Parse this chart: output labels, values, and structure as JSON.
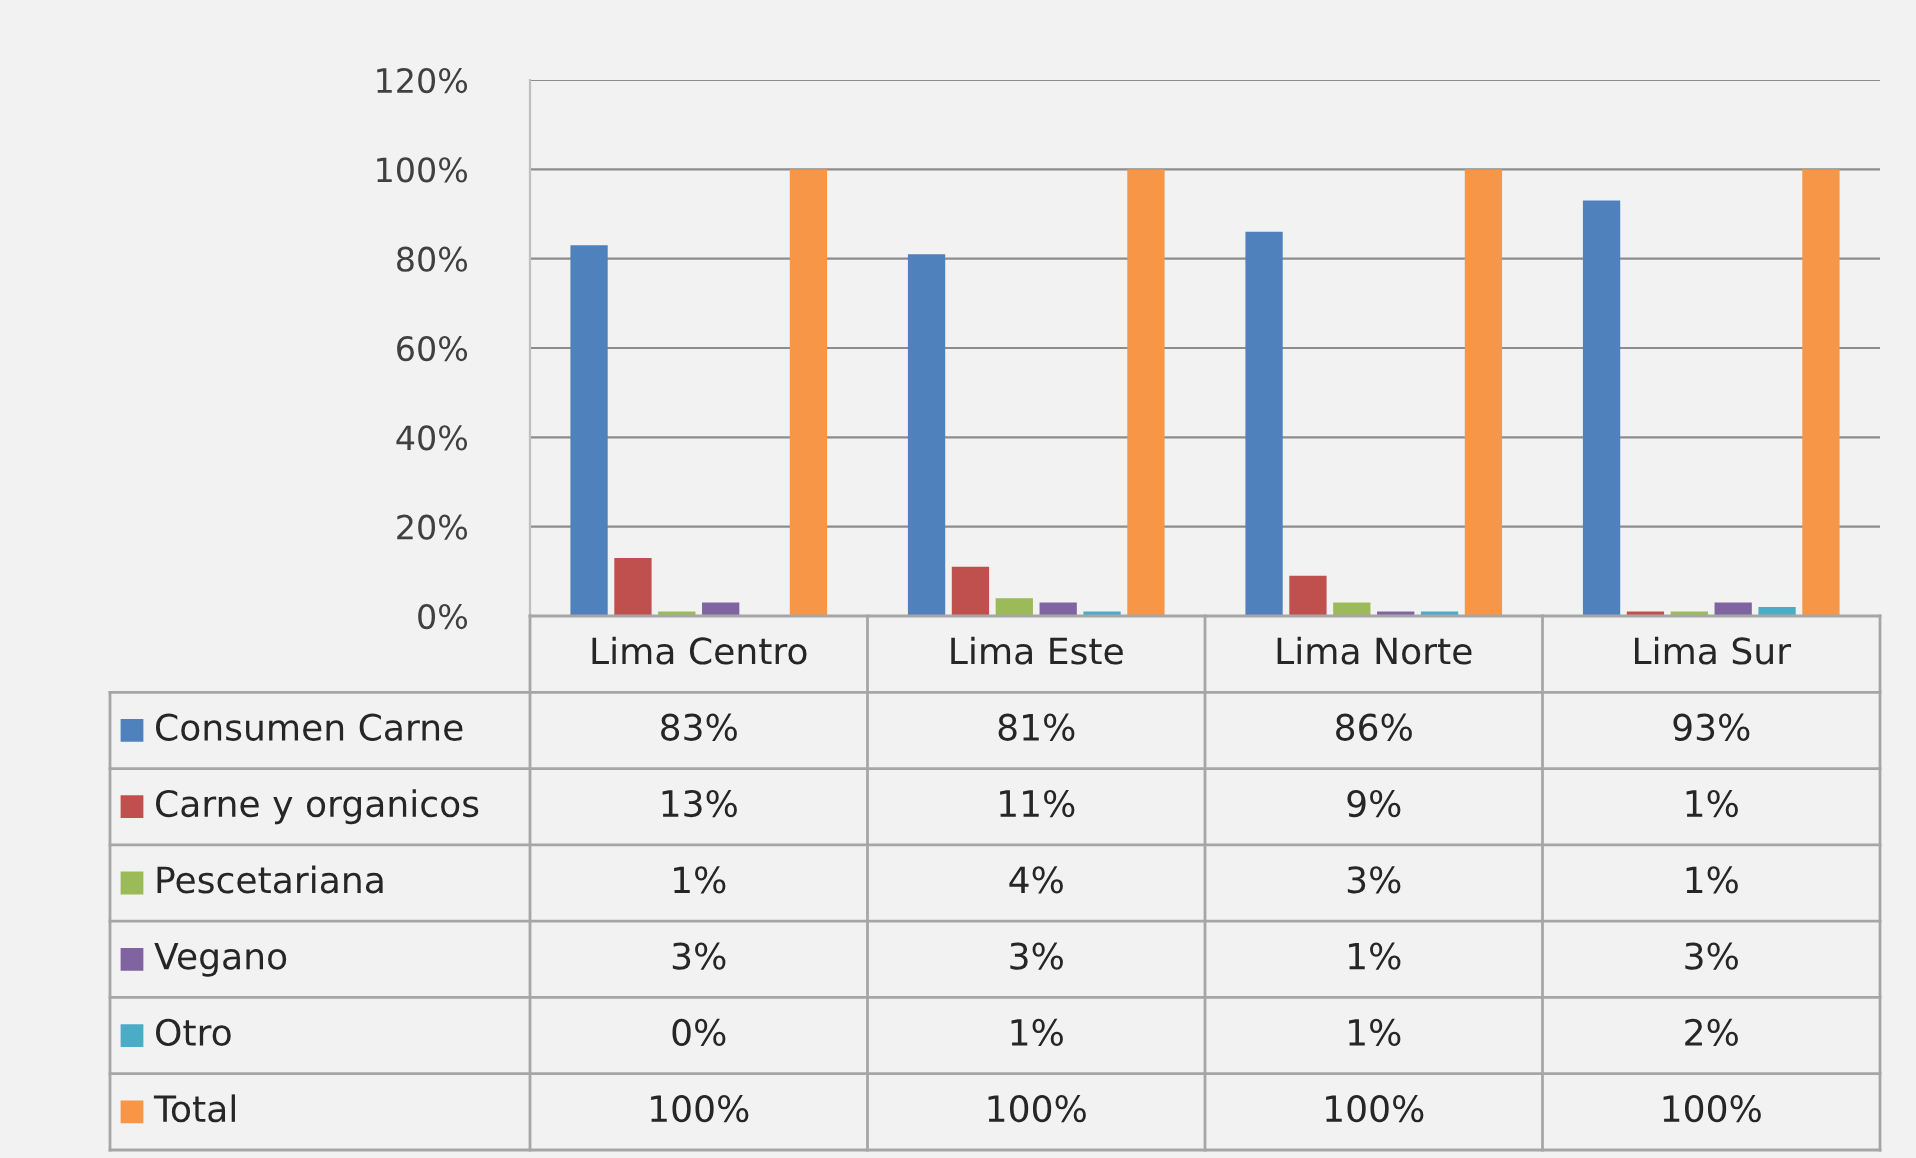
{
  "chart_data": {
    "type": "bar",
    "categories": [
      "Lima Centro",
      "Lima Este",
      "Lima Norte",
      "Lima Sur"
    ],
    "series": [
      {
        "name": "Consumen Carne",
        "color": "#4f81bd",
        "values": [
          83,
          81,
          86,
          93
        ],
        "value_labels": [
          "83%",
          "81%",
          "86%",
          "93%"
        ]
      },
      {
        "name": "Carne y organicos",
        "color": "#c0504d",
        "values": [
          13,
          11,
          9,
          1
        ],
        "value_labels": [
          "13%",
          "11%",
          "9%",
          "1%"
        ]
      },
      {
        "name": "Pescetariana",
        "color": "#9bbb59",
        "values": [
          1,
          4,
          3,
          1
        ],
        "value_labels": [
          "1%",
          "4%",
          "3%",
          "1%"
        ]
      },
      {
        "name": "Vegano",
        "color": "#8064a2",
        "values": [
          3,
          3,
          1,
          3
        ],
        "value_labels": [
          "3%",
          "3%",
          "1%",
          "3%"
        ]
      },
      {
        "name": "Otro",
        "color": "#4bacc6",
        "values": [
          0,
          1,
          1,
          2
        ],
        "value_labels": [
          "0%",
          "1%",
          "1%",
          "2%"
        ]
      },
      {
        "name": "Total",
        "color": "#f79646",
        "values": [
          100,
          100,
          100,
          100
        ],
        "value_labels": [
          "100%",
          "100%",
          "100%",
          "100%"
        ]
      }
    ],
    "ylim": [
      0,
      120
    ],
    "yticks": [
      {
        "value": 0,
        "label": "0%"
      },
      {
        "value": 20,
        "label": "20%"
      },
      {
        "value": 40,
        "label": "40%"
      },
      {
        "value": 60,
        "label": "60%"
      },
      {
        "value": 80,
        "label": "80%"
      },
      {
        "value": 100,
        "label": "100%"
      },
      {
        "value": 120,
        "label": "120%"
      }
    ],
    "grid": "y",
    "legend": "bottom"
  }
}
